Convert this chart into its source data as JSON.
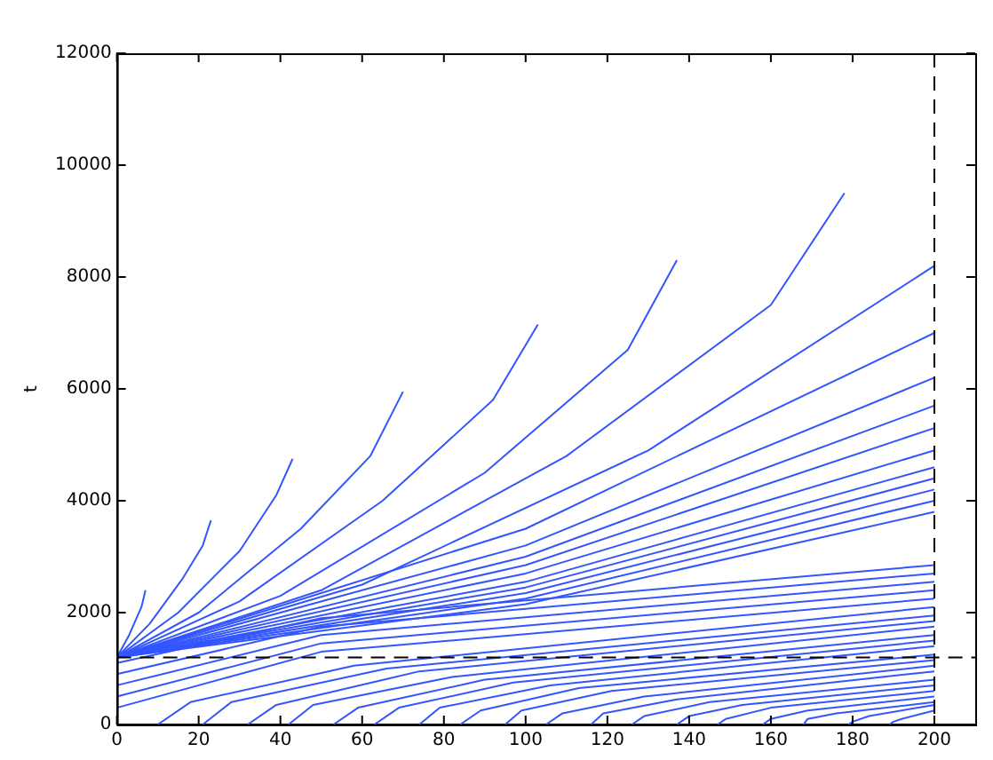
{
  "chart_data": {
    "type": "line",
    "ylabel": "t",
    "xlim": [
      0,
      210
    ],
    "ylim": [
      0,
      12000
    ],
    "xticks": [
      0,
      20,
      40,
      60,
      80,
      100,
      120,
      140,
      160,
      180,
      200
    ],
    "yticks": [
      0,
      2000,
      4000,
      6000,
      8000,
      10000,
      12000
    ],
    "grid": false,
    "legend": false,
    "marker": "none",
    "line_style": "solid",
    "ref_lines": [
      {
        "axis": "y",
        "value": 1200,
        "color": "#000000",
        "line_style": "dashed"
      },
      {
        "axis": "x",
        "value": 200,
        "color": "#000000",
        "line_style": "dashed"
      }
    ],
    "series": [
      {
        "color": "#3355ff",
        "x": [
          0,
          3,
          6,
          7
        ],
        "values": [
          1200,
          1600,
          2100,
          2400
        ]
      },
      {
        "color": "#3355ff",
        "x": [
          0,
          8,
          16,
          21,
          23
        ],
        "values": [
          1200,
          1800,
          2600,
          3200,
          3650
        ]
      },
      {
        "color": "#3355ff",
        "x": [
          0,
          15,
          30,
          39,
          43
        ],
        "values": [
          1200,
          2000,
          3100,
          4100,
          4750
        ]
      },
      {
        "color": "#3355ff",
        "x": [
          0,
          20,
          45,
          62,
          70
        ],
        "values": [
          1200,
          2000,
          3500,
          4800,
          5950
        ]
      },
      {
        "color": "#3355ff",
        "x": [
          0,
          30,
          65,
          92,
          103
        ],
        "values": [
          1200,
          2200,
          4000,
          5800,
          7150
        ]
      },
      {
        "color": "#3355ff",
        "x": [
          0,
          40,
          90,
          125,
          137
        ],
        "values": [
          1200,
          2300,
          4500,
          6700,
          8300
        ]
      },
      {
        "color": "#3355ff",
        "x": [
          0,
          50,
          110,
          160,
          178
        ],
        "values": [
          1200,
          2400,
          4800,
          7500,
          9500
        ]
      },
      {
        "color": "#3355ff",
        "x": [
          0,
          60,
          130,
          200
        ],
        "values": [
          1200,
          2500,
          4900,
          8200
        ]
      },
      {
        "color": "#3355ff",
        "x": [
          0,
          100,
          200
        ],
        "values": [
          1200,
          3500,
          7000
        ]
      },
      {
        "color": "#3355ff",
        "x": [
          0,
          100,
          200
        ],
        "values": [
          1200,
          3200,
          6200
        ]
      },
      {
        "color": "#3355ff",
        "x": [
          0,
          100,
          200
        ],
        "values": [
          1200,
          3000,
          5700
        ]
      },
      {
        "color": "#3355ff",
        "x": [
          0,
          100,
          200
        ],
        "values": [
          1200,
          2850,
          5300
        ]
      },
      {
        "color": "#3355ff",
        "x": [
          0,
          100,
          200
        ],
        "values": [
          1200,
          2700,
          4900
        ]
      },
      {
        "color": "#3355ff",
        "x": [
          0,
          100,
          200
        ],
        "values": [
          1200,
          2550,
          4600
        ]
      },
      {
        "color": "#3355ff",
        "x": [
          0,
          100,
          200
        ],
        "values": [
          1200,
          2450,
          4400
        ]
      },
      {
        "color": "#3355ff",
        "x": [
          0,
          100,
          200
        ],
        "values": [
          1200,
          2350,
          4200
        ]
      },
      {
        "color": "#3355ff",
        "x": [
          0,
          100,
          200
        ],
        "values": [
          1200,
          2250,
          4000
        ]
      },
      {
        "color": "#3355ff",
        "x": [
          0,
          100,
          200
        ],
        "values": [
          1200,
          2150,
          3800
        ]
      },
      {
        "color": "#3355ff",
        "x": [
          0,
          50,
          200
        ],
        "values": [
          1100,
          1900,
          2850
        ]
      },
      {
        "color": "#3355ff",
        "x": [
          0,
          50,
          200
        ],
        "values": [
          900,
          1750,
          2700
        ]
      },
      {
        "color": "#3355ff",
        "x": [
          0,
          50,
          200
        ],
        "values": [
          700,
          1600,
          2550
        ]
      },
      {
        "color": "#3355ff",
        "x": [
          0,
          50,
          200
        ],
        "values": [
          500,
          1450,
          2400
        ]
      },
      {
        "color": "#3355ff",
        "x": [
          0,
          50,
          200
        ],
        "values": [
          300,
          1300,
          2250
        ]
      },
      {
        "color": "#3355ff",
        "x": [
          10,
          18,
          58,
          200
        ],
        "values": [
          0,
          400,
          1050,
          2100
        ]
      },
      {
        "color": "#3355ff",
        "x": [
          21,
          28,
          66,
          200
        ],
        "values": [
          0,
          400,
          1000,
          1950
        ]
      },
      {
        "color": "#3355ff",
        "x": [
          32,
          39,
          74,
          200
        ],
        "values": [
          0,
          350,
          950,
          1850
        ]
      },
      {
        "color": "#3355ff",
        "x": [
          42,
          48,
          82,
          200
        ],
        "values": [
          0,
          350,
          850,
          1750
        ]
      },
      {
        "color": "#3355ff",
        "x": [
          53,
          59,
          90,
          200
        ],
        "values": [
          0,
          300,
          800,
          1600
        ]
      },
      {
        "color": "#3355ff",
        "x": [
          63,
          69,
          97,
          200
        ],
        "values": [
          0,
          300,
          750,
          1500
        ]
      },
      {
        "color": "#3355ff",
        "x": [
          74,
          79,
          106,
          200
        ],
        "values": [
          0,
          300,
          700,
          1400
        ]
      },
      {
        "color": "#3355ff",
        "x": [
          84,
          89,
          113,
          200
        ],
        "values": [
          0,
          250,
          650,
          1250
        ]
      },
      {
        "color": "#3355ff",
        "x": [
          95,
          99,
          121,
          200
        ],
        "values": [
          0,
          250,
          600,
          1150
        ]
      },
      {
        "color": "#3355ff",
        "x": [
          105,
          109,
          129,
          200
        ],
        "values": [
          0,
          200,
          500,
          1050
        ]
      },
      {
        "color": "#3355ff",
        "x": [
          116,
          119,
          137,
          200
        ],
        "values": [
          0,
          200,
          450,
          950
        ]
      },
      {
        "color": "#3355ff",
        "x": [
          126,
          129,
          145,
          200
        ],
        "values": [
          0,
          150,
          400,
          800
        ]
      },
      {
        "color": "#3355ff",
        "x": [
          137,
          140,
          153,
          200
        ],
        "values": [
          0,
          150,
          350,
          700
        ]
      },
      {
        "color": "#3355ff",
        "x": [
          147,
          149,
          160,
          200
        ],
        "values": [
          0,
          100,
          300,
          600
        ]
      },
      {
        "color": "#3355ff",
        "x": [
          158,
          160,
          169,
          200
        ],
        "values": [
          0,
          100,
          250,
          500
        ]
      },
      {
        "color": "#3355ff",
        "x": [
          168,
          169,
          176,
          200
        ],
        "values": [
          0,
          100,
          200,
          400
        ]
      },
      {
        "color": "#3355ff",
        "x": [
          179,
          180,
          184,
          200
        ],
        "values": [
          0,
          50,
          150,
          350
        ]
      },
      {
        "color": "#3355ff",
        "x": [
          189,
          190,
          192,
          200
        ],
        "values": [
          0,
          50,
          100,
          250
        ]
      }
    ]
  }
}
